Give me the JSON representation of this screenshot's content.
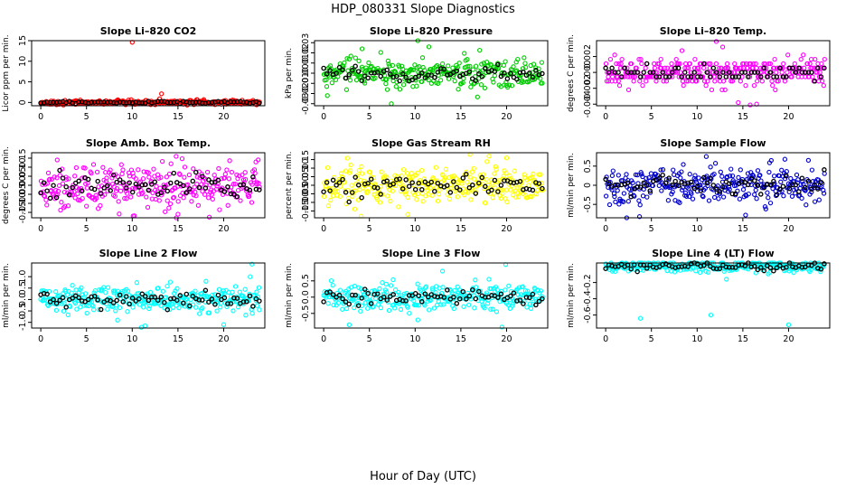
{
  "title": "HDP_080331  Slope Diagnostics",
  "xlabel": "Hour of Day (UTC)",
  "chart_data": [
    {
      "type": "scatter",
      "title": "Slope Li–820 CO2",
      "ylabel": "Licor ppm per min.",
      "color": "#ff0000",
      "xlim": [
        -1,
        24.5
      ],
      "ylim": [
        -0.8,
        15
      ],
      "xticks": [
        0,
        5,
        10,
        15,
        20
      ],
      "yticks": [
        0,
        5,
        10,
        15
      ],
      "ytick_labels": [
        "0",
        "5",
        "10",
        "15"
      ],
      "spread": 0.25,
      "outliers": [
        [
          10.0,
          14.6
        ],
        [
          13.2,
          2.1
        ],
        [
          13.0,
          0.9
        ],
        [
          9.6,
          0.6
        ],
        [
          20.2,
          0.5
        ]
      ]
    },
    {
      "type": "scatter",
      "title": "Slope Li–820 Pressure",
      "ylabel": "kPa per min.",
      "color": "#00cc00",
      "xlim": [
        -1,
        24.5
      ],
      "ylim": [
        -0.032,
        0.032
      ],
      "xticks": [
        0,
        5,
        10,
        15,
        20
      ],
      "yticks": [
        -0.03,
        -0.02,
        -0.01,
        0,
        0.01,
        0.02,
        0.03
      ],
      "ytick_labels": [
        "-0.03",
        "-0.02",
        "-0.01",
        "0.00",
        "0.01",
        "0.02",
        "0.03"
      ],
      "spread": 0.007,
      "outliers": [
        [
          10.3,
          0.032
        ],
        [
          7.4,
          -0.03
        ],
        [
          4.2,
          0.024
        ],
        [
          11.5,
          0.026
        ],
        [
          0.4,
          -0.022
        ]
      ]
    },
    {
      "type": "scatter",
      "title": "Slope Li–820 Temp.",
      "ylabel": "degrees C per min.",
      "color": "#ff00ff",
      "xlim": [
        -1,
        24.5
      ],
      "ylim": [
        -0.0042,
        0.004
      ],
      "xticks": [
        0,
        5,
        10,
        15,
        20
      ],
      "yticks": [
        -0.004,
        -0.002,
        0,
        0.002
      ],
      "ytick_labels": [
        "-0.004",
        "-0.002",
        "0.000",
        "0.002"
      ],
      "spread": 0.0009,
      "quantum": 0.00055,
      "outliers": [
        [
          12.1,
          0.0039
        ],
        [
          12.8,
          0.0032
        ],
        [
          14.5,
          -0.0038
        ],
        [
          15.8,
          -0.0041
        ],
        [
          16.5,
          -0.004
        ]
      ]
    },
    {
      "type": "scatter",
      "title": "Slope Amb. Box Temp.",
      "ylabel": "degrees C per min.",
      "color": "#ff00ff",
      "xlim": [
        -1,
        24.5
      ],
      "ylim": [
        -0.18,
        0.18
      ],
      "xticks": [
        0,
        5,
        10,
        15,
        20
      ],
      "yticks": [
        -0.15,
        -0.1,
        -0.05,
        0,
        0.05,
        0.1,
        0.15
      ],
      "ytick_labels": [
        "-0.15",
        "-0.10",
        "-0.05",
        "0.00",
        "0.05",
        "0.10",
        "0.15"
      ],
      "spread": 0.06,
      "outliers": [
        [
          10.1,
          -0.17
        ],
        [
          15.0,
          -0.16
        ],
        [
          14.8,
          0.16
        ],
        [
          1.8,
          0.14
        ]
      ]
    },
    {
      "type": "scatter",
      "title": "Slope Gas Stream RH",
      "ylabel": "percent per min.",
      "color": "#ffff00",
      "xlim": [
        -1,
        24.5
      ],
      "ylim": [
        -0.19,
        0.19
      ],
      "xticks": [
        0,
        5,
        10,
        15,
        20
      ],
      "yticks": [
        -0.15,
        -0.1,
        -0.05,
        0,
        0.05,
        0.1,
        0.15
      ],
      "ytick_labels": [
        "-0.15",
        "-0.10",
        "-0.05",
        "0.00",
        "0.05",
        "0.10",
        "0.15"
      ],
      "spread": 0.055,
      "outliers": [
        [
          16.0,
          0.18
        ],
        [
          4.1,
          -0.18
        ],
        [
          20.0,
          0.16
        ],
        [
          9.2,
          -0.17
        ]
      ]
    },
    {
      "type": "scatter",
      "title": "Slope Sample Flow",
      "ylabel": "ml/min per min.",
      "color": "#0000cc",
      "xlim": [
        -1,
        24.5
      ],
      "ylim": [
        -0.85,
        0.85
      ],
      "xticks": [
        0,
        5,
        10,
        15,
        20
      ],
      "yticks": [
        -0.5,
        0,
        0.5
      ],
      "ytick_labels": [
        "-0.5",
        "0",
        "0.5"
      ],
      "spread": 0.22,
      "outliers": [
        [
          11.0,
          0.75
        ],
        [
          2.3,
          -0.85
        ],
        [
          3.7,
          -0.82
        ],
        [
          15.3,
          -0.78
        ],
        [
          19.6,
          0.68
        ]
      ]
    },
    {
      "type": "scatter",
      "title": "Slope Line 2 Flow",
      "ylabel": "ml/min per min.",
      "color": "#00ffff",
      "xlim": [
        -1,
        24.5
      ],
      "ylim": [
        -1.25,
        1.6
      ],
      "xticks": [
        0,
        5,
        10,
        15,
        20
      ],
      "yticks": [
        -1.0,
        -0.5,
        0,
        0.5,
        1.0
      ],
      "ytick_labels": [
        "-1.0",
        "-0.5",
        "0.0",
        "0.5",
        "1.0"
      ],
      "spread": 0.28,
      "outliers": [
        [
          11.0,
          -1.22
        ],
        [
          11.4,
          -1.15
        ],
        [
          8.4,
          -0.9
        ],
        [
          23.1,
          1.55
        ],
        [
          20.0,
          -1.1
        ],
        [
          22.9,
          1.0
        ]
      ]
    },
    {
      "type": "scatter",
      "title": "Slope Line 3 Flow",
      "ylabel": "ml/min per min.",
      "color": "#00ffff",
      "xlim": [
        -1,
        24.5
      ],
      "ylim": [
        -0.95,
        1.05
      ],
      "xticks": [
        0,
        5,
        10,
        15,
        20
      ],
      "yticks": [
        -0.5,
        0,
        0.5
      ],
      "ytick_labels": [
        "-0.5",
        "0.0",
        "0.5"
      ],
      "spread": 0.2,
      "outliers": [
        [
          19.9,
          1.0
        ],
        [
          2.8,
          -0.85
        ],
        [
          19.5,
          -0.92
        ],
        [
          13.0,
          0.8
        ],
        [
          10.3,
          -0.7
        ]
      ]
    },
    {
      "type": "scatter",
      "title": "Slope Line 4 (LT) Flow",
      "ylabel": "ml/min per min.",
      "color": "#00ffff",
      "xlim": [
        -1,
        24.5
      ],
      "ylim": [
        -0.76,
        0.04
      ],
      "xticks": [
        0,
        5,
        10,
        15,
        20
      ],
      "yticks": [
        -0.6,
        -0.4,
        -0.2
      ],
      "ytick_labels": [
        "-0.6",
        "-0.4",
        "-0.2"
      ],
      "spread": 0.035,
      "outliers": [
        [
          3.8,
          -0.64
        ],
        [
          11.5,
          -0.6
        ],
        [
          20.0,
          -0.72
        ],
        [
          13.2,
          -0.16
        ]
      ]
    }
  ]
}
